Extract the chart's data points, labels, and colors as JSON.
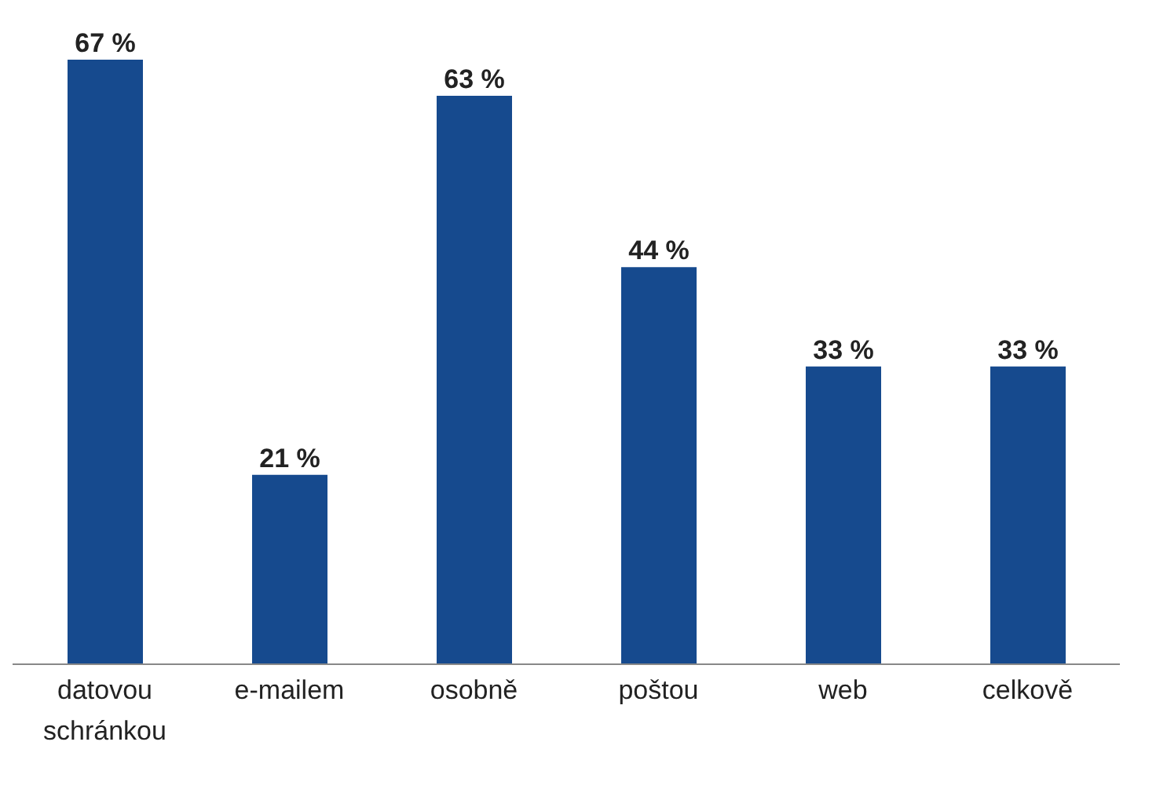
{
  "chart_data": {
    "type": "bar",
    "categories": [
      "datovou schránkou",
      "e-mailem",
      "osobně",
      "poštou",
      "web",
      "celkově"
    ],
    "values": [
      67,
      21,
      63,
      44,
      33,
      33
    ],
    "value_labels": [
      "67 %",
      "21 %",
      "63 %",
      "44 %",
      "33 %",
      "33 %"
    ],
    "color": "#164a8e"
  }
}
